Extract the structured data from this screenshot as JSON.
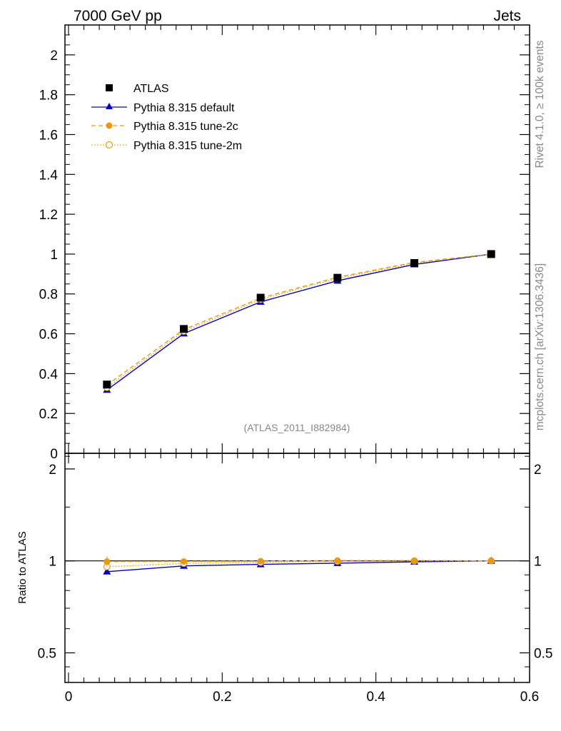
{
  "header": {
    "left_title": "7000 GeV pp",
    "right_title": "Jets"
  },
  "side_labels": {
    "rivet": "Rivet 4.1.0, ≥ 100k events",
    "mcplots": "mcplots.cern.ch [arXiv:1306.3436]"
  },
  "analysis_label": "(ATLAS_2011_I882984)",
  "colors": {
    "data": "#000000",
    "default": "#0000cc",
    "tune2c": "#e69a0f",
    "tune2m": "#e69a0f",
    "axis": "#000000",
    "grey_text": "#888888"
  },
  "chart_data": [
    {
      "type": "line",
      "panel": "main",
      "title": "",
      "xlabel": "",
      "ylabel": "",
      "xlim": [
        0.0,
        0.6
      ],
      "ylim": [
        0.0,
        2.15
      ],
      "y_ticks": [
        0,
        0.2,
        0.4,
        0.6,
        0.8,
        1,
        1.2,
        1.4,
        1.6,
        1.8,
        2
      ],
      "y_tick_labels": [
        "0",
        "0.2",
        "0.4",
        "0.6",
        "0.8",
        "1",
        "1.2",
        "1.4",
        "1.6",
        "1.8",
        "2"
      ],
      "x": [
        0.05,
        0.15,
        0.25,
        0.35,
        0.45,
        0.55
      ],
      "legend_position": "top-left",
      "series": [
        {
          "name": "ATLAS",
          "key": "data",
          "marker": "square",
          "line": "none",
          "values": [
            0.345,
            0.624,
            0.781,
            0.881,
            0.955,
            1.0
          ]
        },
        {
          "name": "Pythia 8.315 default",
          "key": "default",
          "marker": "triangle",
          "line": "solid",
          "values": [
            0.318,
            0.601,
            0.76,
            0.866,
            0.948,
            1.0
          ]
        },
        {
          "name": "Pythia 8.315 tune-2c",
          "key": "tune2c",
          "marker": "circle",
          "line": "dashed",
          "values": [
            0.343,
            0.621,
            0.779,
            0.884,
            0.958,
            1.0
          ]
        },
        {
          "name": "Pythia 8.315 tune-2m",
          "key": "tune2m",
          "marker": "open-circle",
          "line": "dotted",
          "values": [
            0.33,
            0.612,
            0.772,
            0.878,
            0.954,
            1.0
          ]
        }
      ]
    },
    {
      "type": "line",
      "panel": "ratio",
      "ylabel": "Ratio to ATLAS",
      "xlim": [
        0.0,
        0.6
      ],
      "ylim": [
        0.4,
        2.25
      ],
      "y_scale": "log",
      "y_ticks": [
        0.5,
        1,
        2
      ],
      "y_tick_labels": [
        "0.5",
        "1",
        "2"
      ],
      "x_ticks": [
        0,
        0.2,
        0.4,
        0.6
      ],
      "x_tick_labels": [
        "0",
        "0.2",
        "0.4",
        "0.6"
      ],
      "x": [
        0.05,
        0.15,
        0.25,
        0.35,
        0.45,
        0.55
      ],
      "series": [
        {
          "name": "ATLAS",
          "key": "data",
          "values": [
            1.0,
            1.0,
            1.0,
            1.0,
            1.0,
            1.0
          ]
        },
        {
          "name": "Pythia 8.315 default",
          "key": "default",
          "values": [
            0.922,
            0.963,
            0.974,
            0.983,
            0.993,
            1.0
          ]
        },
        {
          "name": "Pythia 8.315 tune-2c",
          "key": "tune2c",
          "values": [
            0.995,
            0.996,
            0.998,
            1.003,
            1.003,
            1.0
          ]
        },
        {
          "name": "Pythia 8.315 tune-2m",
          "key": "tune2m",
          "values": [
            0.957,
            0.981,
            0.989,
            0.997,
            0.999,
            1.0
          ]
        }
      ]
    }
  ]
}
